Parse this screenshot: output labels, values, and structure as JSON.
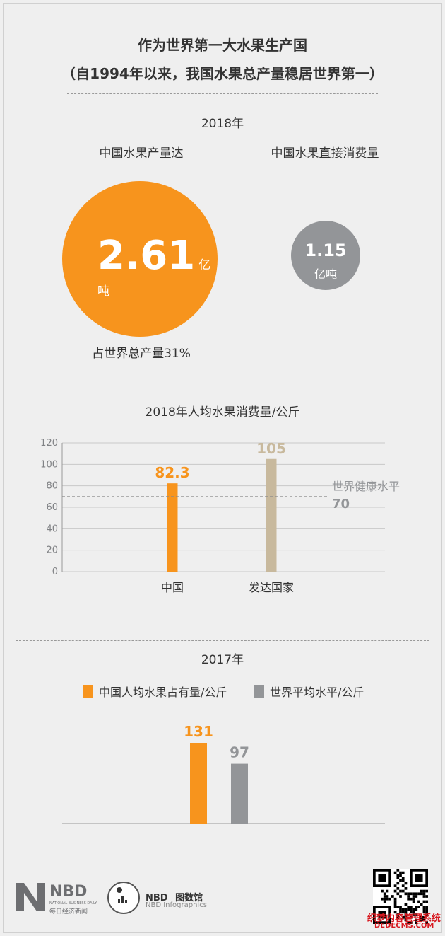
{
  "title": {
    "line1": "作为世界第一大水果生产国",
    "line2": "（自1994年以来，我国水果总产量稳居世界第一）"
  },
  "section2018": {
    "year": "2018年",
    "production": {
      "label": "中国水果产量达",
      "value": "2.61",
      "unit": "亿吨",
      "share": "占世界总产量31%"
    },
    "consumption": {
      "label": "中国水果直接消费量",
      "value": "1.15",
      "unit": "亿吨"
    }
  },
  "chart_data": [
    {
      "type": "bar",
      "title": "2018年人均水果消费量/公斤",
      "categories": [
        "中国",
        "发达国家"
      ],
      "values": [
        82.3,
        105
      ],
      "value_labels": [
        "82.3",
        "105"
      ],
      "colors": [
        "#f7941d",
        "#c8b99d"
      ],
      "yticks": [
        "120",
        "100",
        "80",
        "60",
        "40",
        "20",
        "0"
      ],
      "ylim": [
        0,
        120
      ],
      "grid": true,
      "reference_line": {
        "label": "世界健康水平",
        "value": 70,
        "value_label": "70"
      }
    },
    {
      "type": "bar",
      "title": "2017年",
      "series": [
        {
          "name": "中国人均水果占有量/公斤",
          "value": 131,
          "value_label": "131",
          "color": "#f7941d"
        },
        {
          "name": "世界平均水平/公斤",
          "value": 97,
          "value_label": "97",
          "color": "#939598"
        }
      ]
    }
  ],
  "footer": {
    "nbd_logo": "NBD",
    "nbd_sub_en": "NATIONAL BUSINESS DAILY",
    "nbd_sub_cn": "每日经济新闻",
    "infographics_logo": "NBD",
    "infographics_cn": "图数馆",
    "infographics_en": "NBD Infographics",
    "watermark": "织梦内容管理系统",
    "watermark_url": "DEDECMS.COM"
  },
  "colors": {
    "orange": "#f7941d",
    "gray": "#939598",
    "beige": "#c8b99d"
  }
}
